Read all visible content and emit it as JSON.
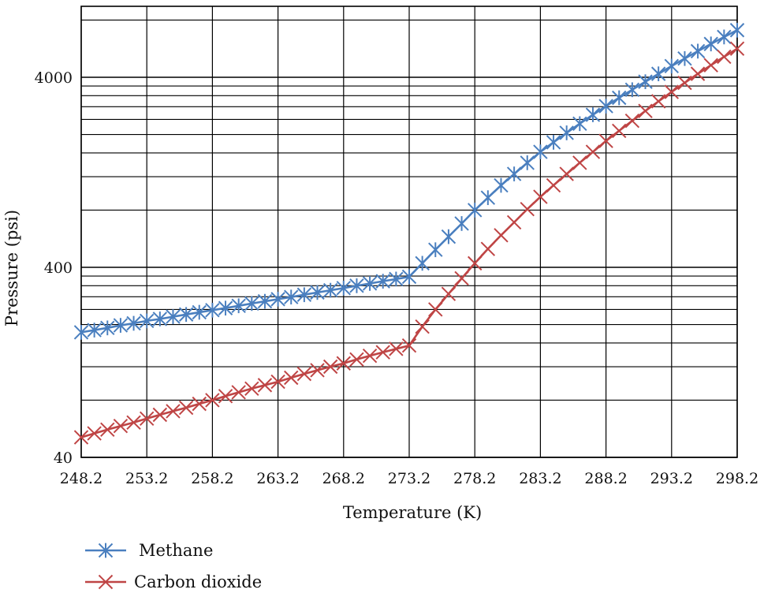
{
  "chart_data": {
    "type": "line",
    "title": "",
    "xlabel": "Temperature (K)",
    "ylabel": "Pressure (psi)",
    "x_scale": "linear",
    "y_scale": "log",
    "xlim": [
      248.2,
      298.2
    ],
    "ylim": [
      40,
      8000
    ],
    "x_ticks": [
      "248.2",
      "253.2",
      "258.2",
      "263.2",
      "268.2",
      "273.2",
      "278.2",
      "283.2",
      "288.2",
      "293.2",
      "298.2"
    ],
    "y_ticks": [
      "40",
      "400",
      "4000"
    ],
    "grid": true,
    "legend_position": "bottom-left",
    "series": [
      {
        "name": "Methane",
        "color": "#4a7fbf",
        "marker": "asterisk",
        "x": [
          248.2,
          249.2,
          250.2,
          251.2,
          252.2,
          253.2,
          254.2,
          255.2,
          256.2,
          257.2,
          258.2,
          259.2,
          260.2,
          261.2,
          262.2,
          263.2,
          264.2,
          265.2,
          266.2,
          267.2,
          268.2,
          269.2,
          270.2,
          271.2,
          272.2,
          273.2,
          274.2,
          275.2,
          276.2,
          277.2,
          278.2,
          279.2,
          280.2,
          281.2,
          282.2,
          283.2,
          284.2,
          285.2,
          286.2,
          287.2,
          288.2,
          289.2,
          290.2,
          291.2,
          292.2,
          293.2,
          294.2,
          295.2,
          296.2,
          297.2,
          298.2
        ],
        "y": [
          182,
          187,
          192,
          198,
          203,
          209,
          214,
          220,
          226,
          232,
          238,
          244,
          251,
          258,
          265,
          272,
          279,
          287,
          295,
          303,
          311,
          320,
          329,
          338,
          347,
          357,
          420,
          495,
          580,
          680,
          800,
          930,
          1080,
          1240,
          1420,
          1620,
          1820,
          2040,
          2280,
          2540,
          2820,
          3120,
          3440,
          3790,
          4170,
          4580,
          5020,
          5490,
          5990,
          6520,
          7080
        ]
      },
      {
        "name": "Carbon dioxide",
        "color": "#bf4545",
        "marker": "x",
        "x": [
          248.2,
          249.2,
          250.2,
          251.2,
          252.2,
          253.2,
          254.2,
          255.2,
          256.2,
          257.2,
          258.2,
          259.2,
          260.2,
          261.2,
          262.2,
          263.2,
          264.2,
          265.2,
          266.2,
          267.2,
          268.2,
          269.2,
          270.2,
          271.2,
          272.2,
          273.2,
          274.2,
          275.2,
          276.2,
          277.2,
          278.2,
          279.2,
          280.2,
          281.2,
          282.2,
          283.2,
          284.2,
          285.2,
          286.2,
          287.2,
          288.2,
          289.2,
          290.2,
          291.2,
          292.2,
          293.2,
          294.2,
          295.2,
          296.2,
          297.2,
          298.2
        ],
        "y": [
          51,
          53.5,
          56,
          58.5,
          61,
          64,
          67,
          70,
          73,
          76.5,
          80,
          84,
          88,
          92,
          96,
          100,
          105,
          110,
          115,
          120,
          125,
          131,
          137,
          143,
          149,
          155,
          195,
          240,
          290,
          350,
          420,
          500,
          590,
          690,
          810,
          940,
          1080,
          1240,
          1420,
          1620,
          1850,
          2090,
          2360,
          2660,
          2990,
          3350,
          3740,
          4170,
          4630,
          5130,
          5660
        ]
      }
    ]
  }
}
